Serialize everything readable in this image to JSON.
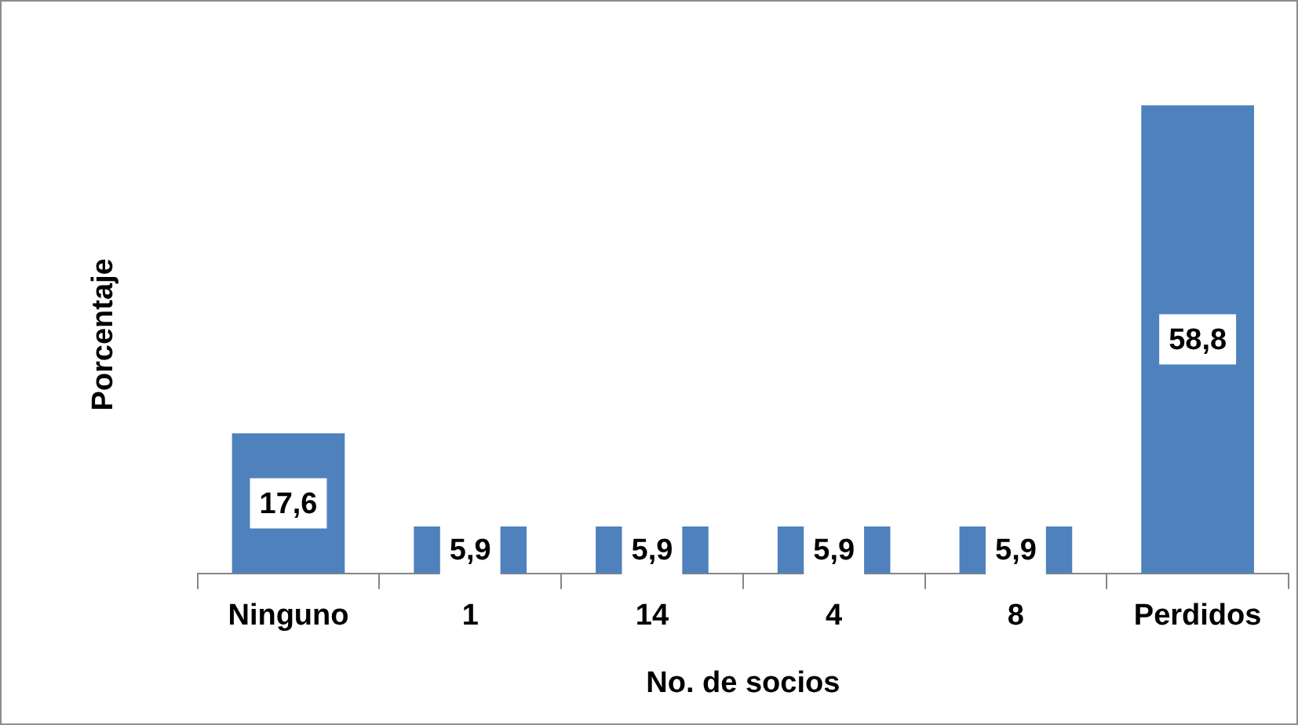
{
  "chart_data": {
    "type": "bar",
    "xlabel": "No. de socios",
    "ylabel": "Porcentaje",
    "categories": [
      "Ninguno",
      "1",
      "14",
      "4",
      "8",
      "Perdidos"
    ],
    "values": [
      17.6,
      5.9,
      5.9,
      5.9,
      5.9,
      58.8
    ],
    "value_labels": [
      "17,6",
      "5,9",
      "5,9",
      "5,9",
      "5,9",
      "58,8"
    ],
    "color": "#4f81bd",
    "grid": false,
    "legend": false
  }
}
